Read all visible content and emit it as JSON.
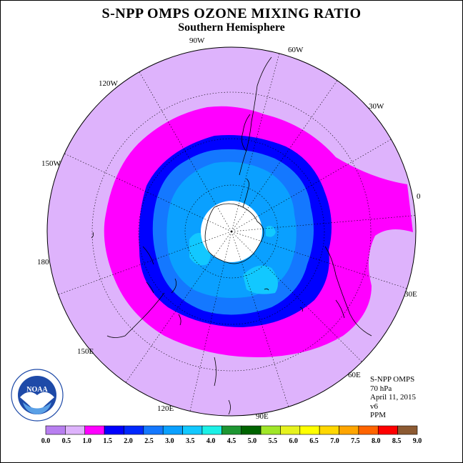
{
  "title": "S-NPP OMPS OZONE MIXING RATIO",
  "subtitle": "Southern Hemisphere",
  "longitude_labels": [
    "90W",
    "60W",
    "30W",
    "0",
    "30E",
    "60E",
    "90E",
    "120E",
    "150E",
    "180",
    "150W",
    "120W"
  ],
  "info": {
    "instrument": "S-NPP OMPS",
    "level": "70 hPa",
    "date": "April 11, 2015",
    "version": "v6",
    "units": "PPM"
  },
  "colorbar": {
    "ticks": [
      "0.0",
      "0.5",
      "1.0",
      "1.5",
      "2.0",
      "2.5",
      "3.0",
      "3.5",
      "4.0",
      "4.5",
      "5.0",
      "5.5",
      "6.0",
      "6.5",
      "7.0",
      "7.5",
      "8.0",
      "8.5",
      "9.0"
    ],
    "colors": [
      "#b87ff0",
      "#deb3fc",
      "#ff00ff",
      "#0000ff",
      "#0028ff",
      "#1478ff",
      "#0aa0ff",
      "#12c8ff",
      "#1cf0e6",
      "#1e9632",
      "#006400",
      "#a0e628",
      "#e6f21e",
      "#ffff00",
      "#ffd700",
      "#ffa500",
      "#ff6400",
      "#ff0000",
      "#8c5a32"
    ]
  },
  "colors": {
    "background_field": "#deb3fc",
    "ring_magenta": "#ff00ff",
    "ring_blue": "#0000ff",
    "ring_mid": "#1478ff",
    "ring_light": "#0aa0ff",
    "ring_cyan": "#12c8ff",
    "pole_mask": "#ffffff"
  },
  "logo": {
    "name": "noaa-logo",
    "text": "NOAA"
  }
}
